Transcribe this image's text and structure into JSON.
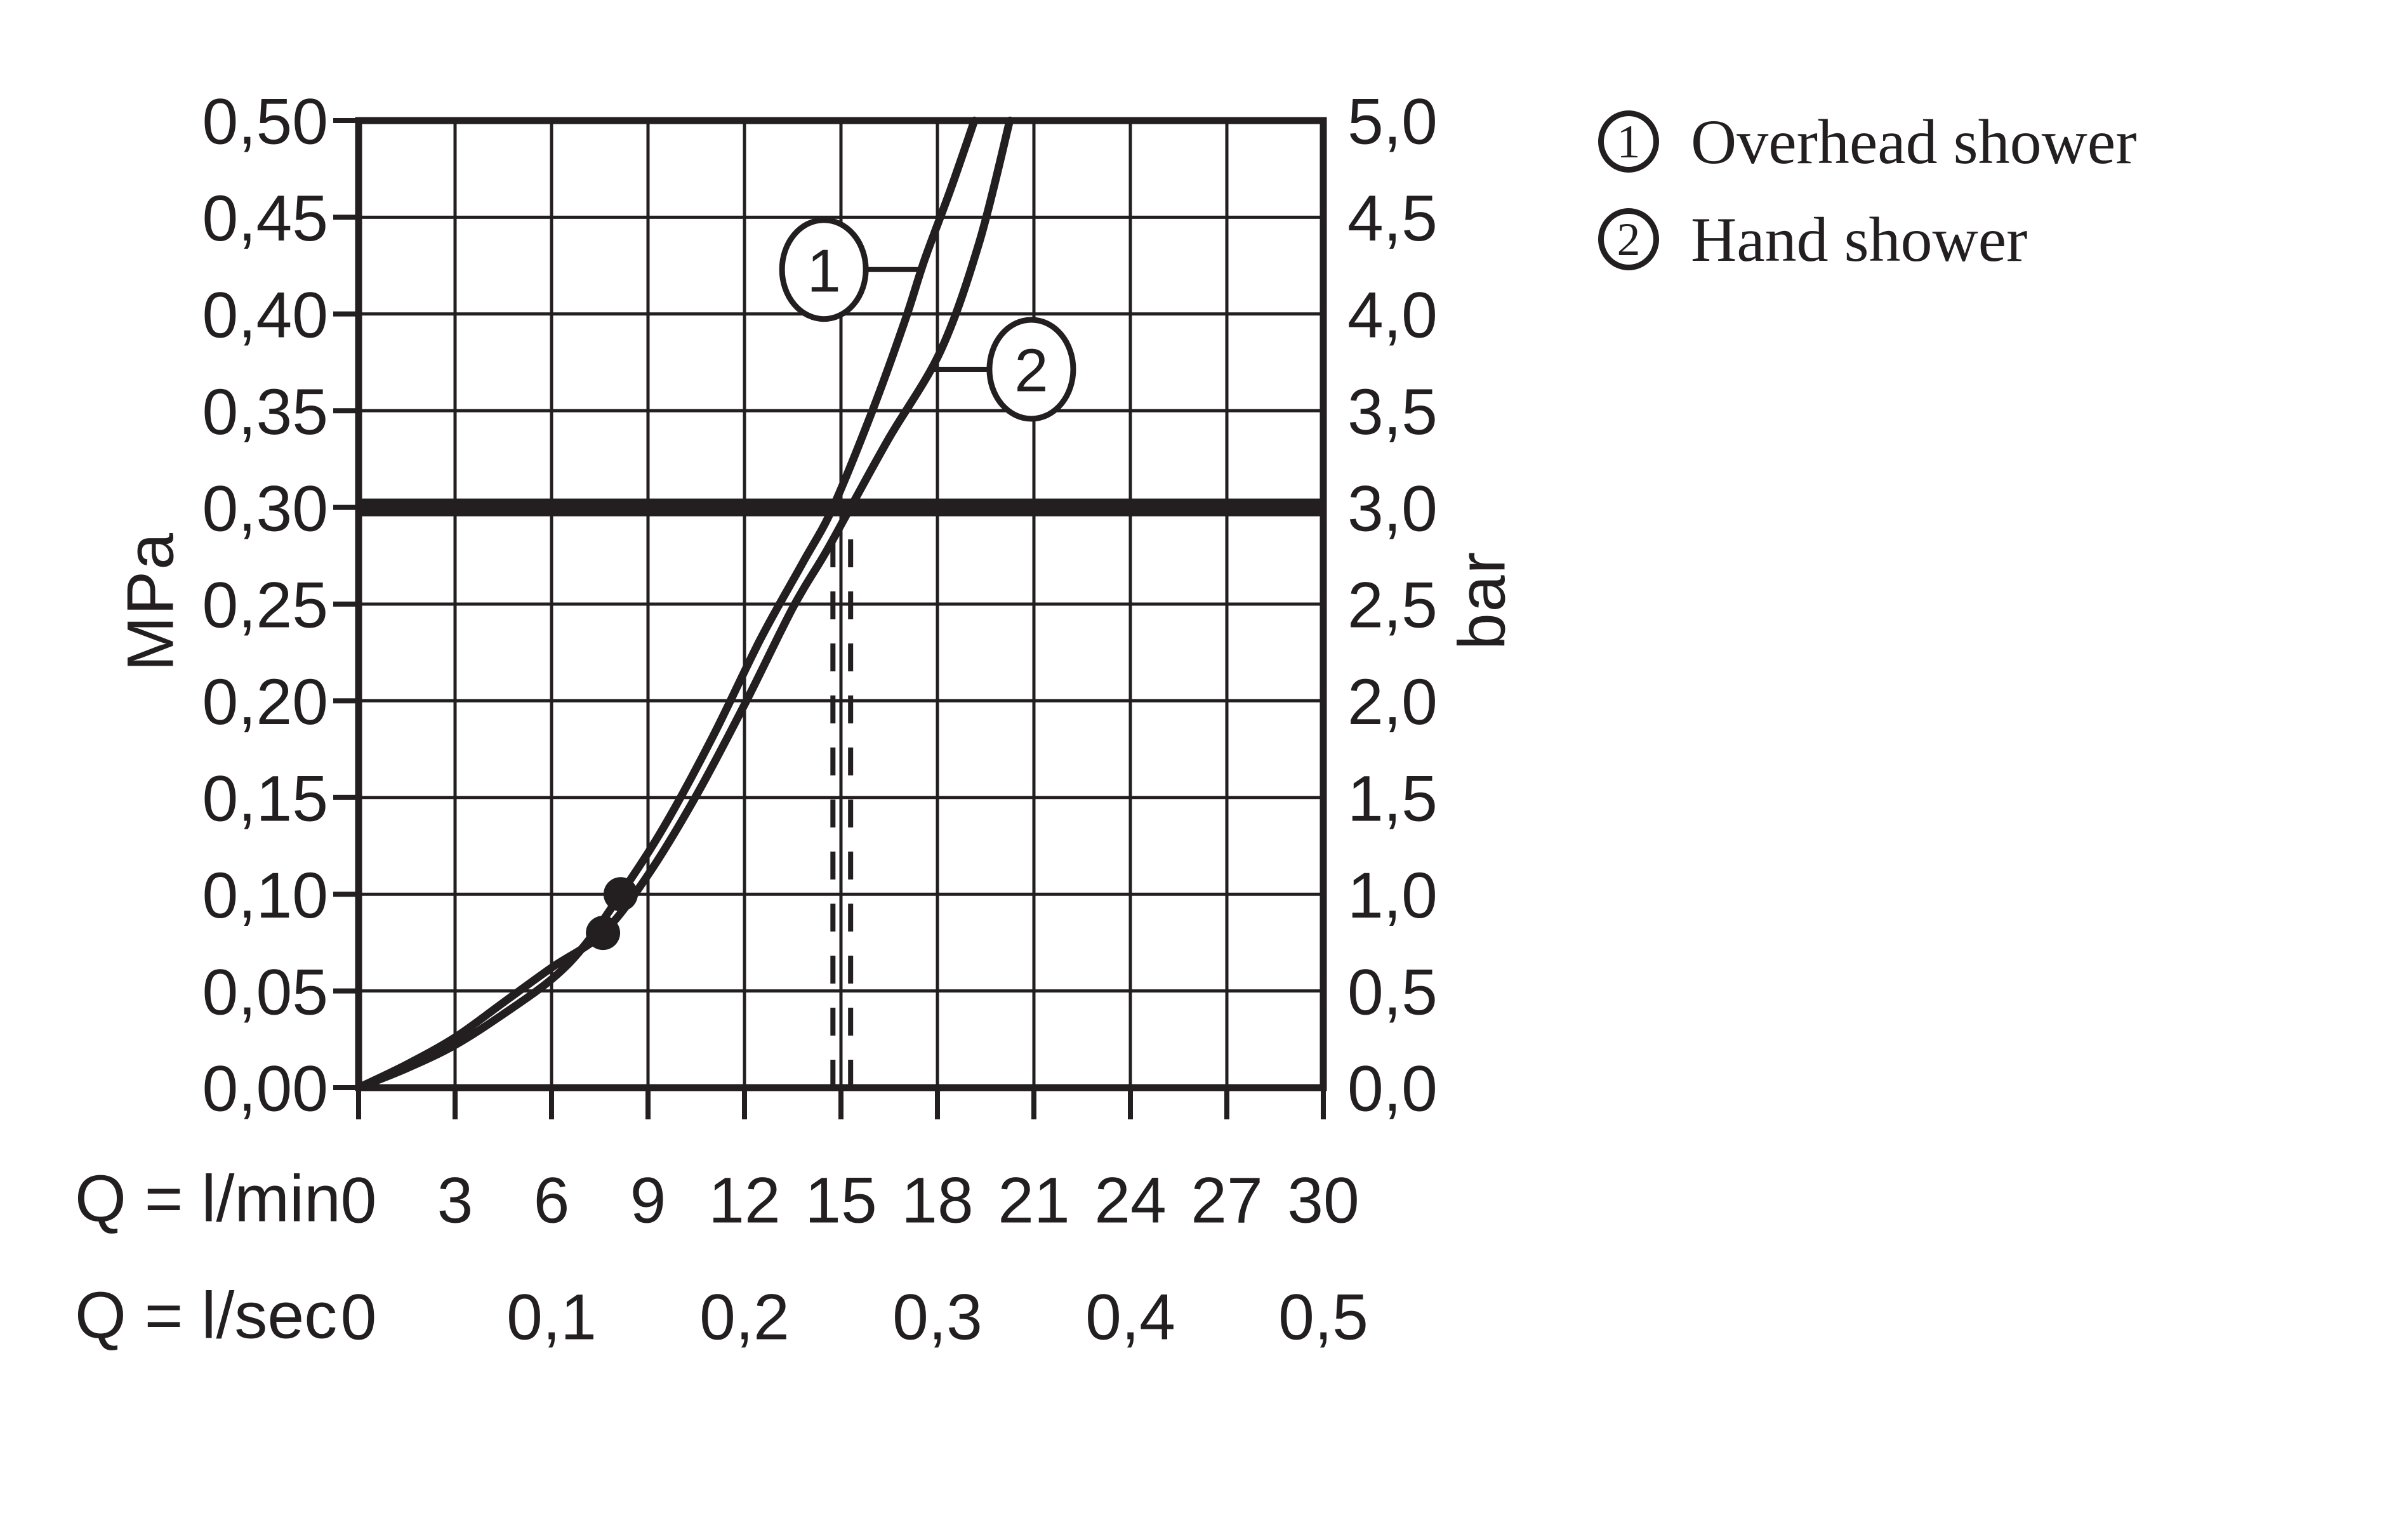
{
  "page": {
    "background": "#ffffff",
    "ink_color": "#231f20"
  },
  "chart": {
    "left_axis_unit": "MPa",
    "right_axis_unit": "bar",
    "x_axis_lmin_label": "Q = l/min",
    "x_axis_lsec_label": "Q = l/sec"
  },
  "legend": {
    "items": [
      {
        "marker": "1",
        "label": "Overhead shower"
      },
      {
        "marker": "2",
        "label": "Hand shower"
      }
    ]
  },
  "chart_data": {
    "type": "line",
    "title": "",
    "x_range_lmin": [
      0,
      30
    ],
    "y_range_mpa": [
      0,
      0.5
    ],
    "y_range_bar": [
      0,
      5.0
    ],
    "grid_step_lmin": 3,
    "grid_step_mpa": 0.05,
    "grid": "on",
    "x_ticks_lmin": [
      {
        "label": "0",
        "value": 0
      },
      {
        "label": "3",
        "value": 3
      },
      {
        "label": "6",
        "value": 6
      },
      {
        "label": "9",
        "value": 9
      },
      {
        "label": "12",
        "value": 12
      },
      {
        "label": "15",
        "value": 15
      },
      {
        "label": "18",
        "value": 18
      },
      {
        "label": "21",
        "value": 21
      },
      {
        "label": "24",
        "value": 24
      },
      {
        "label": "27",
        "value": 27
      },
      {
        "label": "30",
        "value": 30
      }
    ],
    "x_ticks_lsec": [
      {
        "label": "0",
        "at_lmin": 0
      },
      {
        "label": "0,1",
        "at_lmin": 6
      },
      {
        "label": "0,2",
        "at_lmin": 12
      },
      {
        "label": "0,3",
        "at_lmin": 18
      },
      {
        "label": "0,4",
        "at_lmin": 24
      },
      {
        "label": "0,5",
        "at_lmin": 30
      }
    ],
    "y_ticks_left_mpa": [
      {
        "label": "0,50",
        "value": 0.5
      },
      {
        "label": "0,45",
        "value": 0.45
      },
      {
        "label": "0,40",
        "value": 0.4
      },
      {
        "label": "0,35",
        "value": 0.35
      },
      {
        "label": "0,30",
        "value": 0.3
      },
      {
        "label": "0,25",
        "value": 0.25
      },
      {
        "label": "0,20",
        "value": 0.2
      },
      {
        "label": "0,15",
        "value": 0.15
      },
      {
        "label": "0,10",
        "value": 0.1
      },
      {
        "label": "0,05",
        "value": 0.05
      },
      {
        "label": "0,00",
        "value": 0.0
      }
    ],
    "y_ticks_right_bar": [
      {
        "label": "5,0",
        "value": 0.5
      },
      {
        "label": "4,5",
        "value": 0.45
      },
      {
        "label": "4,0",
        "value": 0.4
      },
      {
        "label": "3,5",
        "value": 0.35
      },
      {
        "label": "3,0",
        "value": 0.3
      },
      {
        "label": "2,5",
        "value": 0.25
      },
      {
        "label": "2,0",
        "value": 0.2
      },
      {
        "label": "1,5",
        "value": 0.15
      },
      {
        "label": "1,0",
        "value": 0.1
      },
      {
        "label": "0,5",
        "value": 0.05
      },
      {
        "label": "0,0",
        "value": 0.0
      }
    ],
    "reference_line_mpa": 0.3,
    "dashed_guides_lmin": [
      14.75,
      15.3
    ],
    "dashed_guides_top_mpa": 0.292,
    "series": [
      {
        "name": "Overhead shower",
        "callout": "1",
        "points_lmin_mpa": [
          [
            0,
            0
          ],
          [
            1.5,
            0.01
          ],
          [
            3,
            0.022
          ],
          [
            4.5,
            0.038
          ],
          [
            6,
            0.056
          ],
          [
            7,
            0.073
          ],
          [
            8.15,
            0.1
          ],
          [
            9.5,
            0.135
          ],
          [
            11,
            0.181
          ],
          [
            12.5,
            0.232
          ],
          [
            13.8,
            0.271
          ],
          [
            14.75,
            0.3
          ],
          [
            16,
            0.351
          ],
          [
            17,
            0.397
          ],
          [
            17.6,
            0.428
          ],
          [
            18.4,
            0.464
          ],
          [
            19.15,
            0.5
          ]
        ]
      },
      {
        "name": "Hand shower",
        "callout": "2",
        "points_lmin_mpa": [
          [
            0,
            0
          ],
          [
            1.5,
            0.012
          ],
          [
            3,
            0.026
          ],
          [
            4.5,
            0.044
          ],
          [
            6,
            0.062
          ],
          [
            7.6,
            0.08
          ],
          [
            9,
            0.11
          ],
          [
            10.5,
            0.151
          ],
          [
            12,
            0.198
          ],
          [
            13.5,
            0.248
          ],
          [
            14.5,
            0.276
          ],
          [
            15.3,
            0.3
          ],
          [
            16.5,
            0.336
          ],
          [
            18.1,
            0.381
          ],
          [
            19.3,
            0.437
          ],
          [
            20.25,
            0.5
          ]
        ]
      }
    ],
    "marker_dots": [
      {
        "x_lmin": 8.15,
        "y_mpa": 0.1
      },
      {
        "x_lmin": 7.6,
        "y_mpa": 0.08
      }
    ],
    "callouts": [
      {
        "label": "1",
        "cx_lmin": 14.47,
        "cy_mpa": 0.423,
        "attach_lmin": 17.5
      },
      {
        "label": "2",
        "cx_lmin": 20.92,
        "cy_mpa": 0.3714,
        "attach_lmin": 17.85
      }
    ]
  }
}
